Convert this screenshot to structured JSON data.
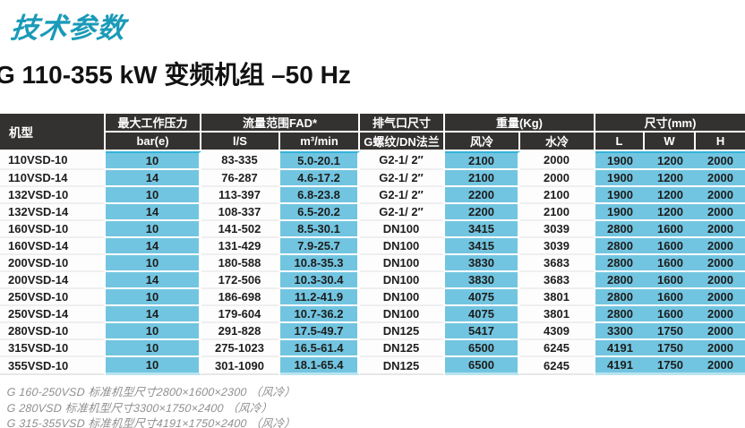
{
  "page": {
    "title": "技术参数",
    "subtitle": "G 110-355 kW 变频机组 –50 Hz"
  },
  "colors": {
    "accent_teal": "#1a9ab8",
    "header_dark": "#343231",
    "cell_blue": "#72c5e0"
  },
  "table": {
    "header": {
      "model": "机型",
      "pressure_group": "最大工作压力",
      "pressure_unit": "bar(e)",
      "flow_group": "流量范围FAD*",
      "flow_unit_ls": "l/S",
      "flow_unit_m3": "m³/min",
      "outlet_group": "排气口尺寸",
      "outlet_unit": "G螺纹/DN法兰",
      "weight_group": "重量(Kg)",
      "weight_air": "风冷",
      "weight_water": "水冷",
      "dims_group": "尺寸(mm)",
      "dim_l": "L",
      "dim_w": "W",
      "dim_h": "H"
    },
    "rows": [
      [
        "110VSD-10",
        "10",
        "83-335",
        "5.0-20.1",
        "G2-1/ 2″",
        "2100",
        "2000",
        "1900",
        "1200",
        "2000"
      ],
      [
        "110VSD-14",
        "14",
        "76-287",
        "4.6-17.2",
        "G2-1/ 2″",
        "2100",
        "2000",
        "1900",
        "1200",
        "2000"
      ],
      [
        "132VSD-10",
        "10",
        "113-397",
        "6.8-23.8",
        "G2-1/ 2″",
        "2200",
        "2100",
        "1900",
        "1200",
        "2000"
      ],
      [
        "132VSD-14",
        "14",
        "108-337",
        "6.5-20.2",
        "G2-1/ 2″",
        "2200",
        "2100",
        "1900",
        "1200",
        "2000"
      ],
      [
        "160VSD-10",
        "10",
        "141-502",
        "8.5-30.1",
        "DN100",
        "3415",
        "3039",
        "2800",
        "1600",
        "2000"
      ],
      [
        "160VSD-14",
        "14",
        "131-429",
        "7.9-25.7",
        "DN100",
        "3415",
        "3039",
        "2800",
        "1600",
        "2000"
      ],
      [
        "200VSD-10",
        "10",
        "180-588",
        "10.8-35.3",
        "DN100",
        "3830",
        "3683",
        "2800",
        "1600",
        "2000"
      ],
      [
        "200VSD-14",
        "14",
        "172-506",
        "10.3-30.4",
        "DN100",
        "3830",
        "3683",
        "2800",
        "1600",
        "2000"
      ],
      [
        "250VSD-10",
        "10",
        "186-698",
        "11.2-41.9",
        "DN100",
        "4075",
        "3801",
        "2800",
        "1600",
        "2000"
      ],
      [
        "250VSD-14",
        "14",
        "179-604",
        "10.7-36.2",
        "DN100",
        "4075",
        "3801",
        "2800",
        "1600",
        "2000"
      ],
      [
        "280VSD-10",
        "10",
        "291-828",
        "17.5-49.7",
        "DN125",
        "5417",
        "4309",
        "3300",
        "1750",
        "2000"
      ],
      [
        "315VSD-10",
        "10",
        "275-1023",
        "16.5-61.4",
        "DN125",
        "6500",
        "6245",
        "4191",
        "1750",
        "2000"
      ],
      [
        "355VSD-10",
        "10",
        "301-1090",
        "18.1-65.4",
        "DN125",
        "6500",
        "6245",
        "4191",
        "1750",
        "2000"
      ]
    ]
  },
  "footnotes": [
    "G 160-250VSD 标准机型尺寸2800×1600×2300 （风冷）",
    "G 280VSD 标准机型尺寸3300×1750×2400 （风冷）",
    "G 315-355VSD 标准机型尺寸4191×1750×2400 （风冷）"
  ]
}
